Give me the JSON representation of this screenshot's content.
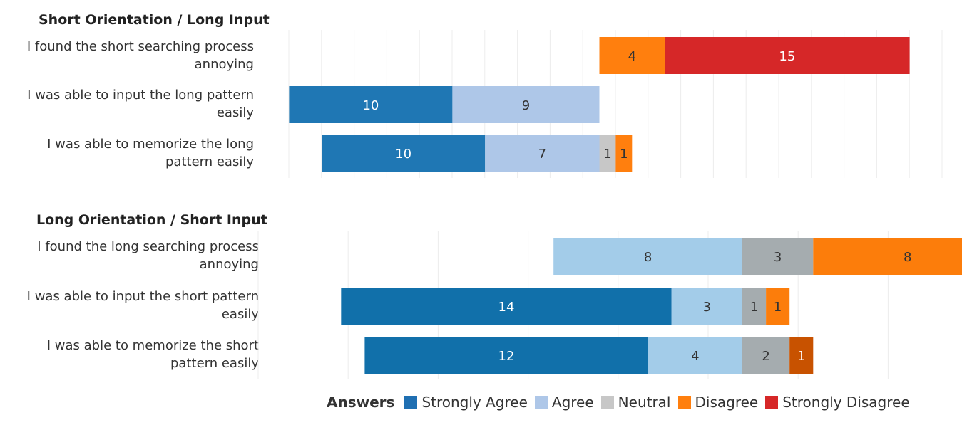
{
  "chart_data": [
    {
      "type": "bar",
      "orientation": "horizontal",
      "stacked": true,
      "title": "Short Orientation / Long Input",
      "categories": [
        "I found the short searching process annoying",
        "I was able to input the long pattern easily",
        "I was able to memorize the long pattern easily"
      ],
      "series": [
        {
          "name": "Strongly Agree",
          "values": [
            0,
            10,
            10
          ]
        },
        {
          "name": "Agree",
          "values": [
            0,
            9,
            7
          ]
        },
        {
          "name": "Neutral",
          "values": [
            0,
            0,
            1
          ]
        },
        {
          "name": "Disagree",
          "values": [
            4,
            0,
            1
          ]
        },
        {
          "name": "Strongly Disagree",
          "values": [
            15,
            0,
            0
          ]
        }
      ],
      "grid": true
    },
    {
      "type": "bar",
      "orientation": "horizontal",
      "stacked": true,
      "title": "Long Orientation / Short Input",
      "categories": [
        "I found the long searching process annoying",
        "I was able to input the short pattern easily",
        "I was able to memorize the short pattern easily"
      ],
      "series": [
        {
          "name": "Strongly Agree",
          "values": [
            0,
            14,
            12
          ]
        },
        {
          "name": "Agree",
          "values": [
            8,
            3,
            4
          ]
        },
        {
          "name": "Neutral",
          "values": [
            3,
            1,
            2
          ]
        },
        {
          "name": "Disagree",
          "values": [
            8,
            1,
            1
          ]
        },
        {
          "name": "Strongly Disagree",
          "values": [
            0,
            0,
            0
          ]
        }
      ],
      "grid": true
    }
  ],
  "panel1": {
    "title": "Short Orientation / Long Input",
    "labels": [
      [
        "I found the short searching process",
        "annoying"
      ],
      [
        "I was able to input the long pattern",
        "easily"
      ],
      [
        "I was able to memorize the long",
        "pattern easily"
      ]
    ]
  },
  "panel2": {
    "title": "Long Orientation / Short Input",
    "labels": [
      [
        "I found the long searching process",
        "annoying"
      ],
      [
        "I was able to input the short pattern",
        "easily"
      ],
      [
        "I was able to memorize the short",
        "pattern easily"
      ]
    ]
  },
  "legend": {
    "title": "Answers",
    "items": [
      {
        "label": "Strongly Agree",
        "color": "#1f6fb2"
      },
      {
        "label": "Agree",
        "color": "#aec7e8"
      },
      {
        "label": "Neutral",
        "color": "#c7c7c7"
      },
      {
        "label": "Disagree",
        "color": "#ff7f0e"
      },
      {
        "label": "Strongly Disagree",
        "color": "#d62728"
      }
    ]
  },
  "panel_colors": [
    [
      "#1f77b4",
      "#aec7e8",
      "#c7c7c7",
      "#ff7f0e",
      "#d62728"
    ],
    [
      "#1170aa",
      "#a3cce9",
      "#a5acaf",
      "#fc7d0b",
      "#c85200"
    ]
  ],
  "panel2_cell_overrides": {
    "2-3": "#c85200",
    "0-3": "#fc7d0b",
    "1-3": "#fc7d0b"
  },
  "label_colors": {
    "dark_bg": "#ffffff",
    "light_bg": "#333333"
  }
}
